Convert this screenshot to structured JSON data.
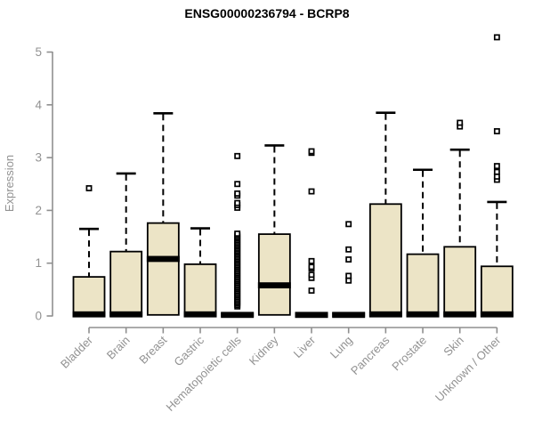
{
  "chart_data": {
    "type": "boxplot",
    "title": "ENSG00000236794 - BCRP8",
    "ylabel": "Expression",
    "xlabel": "",
    "ylim": [
      0,
      5
    ],
    "yticks": [
      0,
      1,
      2,
      3,
      4,
      5
    ],
    "grid": false,
    "legend": "none",
    "colors": {
      "box_fill": "#ece4c6",
      "box_border": "#000000",
      "median": "#000000",
      "whisker": "#000000",
      "outlier_fill": "#ffffff",
      "axis": "#8f8f8f",
      "label": "#929292",
      "title": "#000000",
      "background": "#ffffff"
    },
    "categories": [
      "Bladder",
      "Brain",
      "Breast",
      "Gastric",
      "Hematopoietic cells",
      "Kidney",
      "Liver",
      "Lung",
      "Pancreas",
      "Prostate",
      "Skin",
      "Unknown / Other"
    ],
    "boxes": [
      {
        "label": "Bladder",
        "q1": 0,
        "median": 0.03,
        "q3": 0.74,
        "whisker_low": 0,
        "whisker_high": 1.65,
        "outliers": [
          2.42
        ]
      },
      {
        "label": "Brain",
        "q1": 0,
        "median": 0.03,
        "q3": 1.22,
        "whisker_low": 0,
        "whisker_high": 2.7,
        "outliers": []
      },
      {
        "label": "Breast",
        "q1": 0.02,
        "median": 1.08,
        "q3": 1.76,
        "whisker_low": 0,
        "whisker_high": 3.84,
        "outliers": []
      },
      {
        "label": "Gastric",
        "q1": 0,
        "median": 0.03,
        "q3": 0.98,
        "whisker_low": 0,
        "whisker_high": 1.66,
        "outliers": []
      },
      {
        "label": "Hematopoietic cells",
        "q1": 0,
        "median": 0.02,
        "q3": 0.05,
        "whisker_low": 0,
        "whisker_high": 0.06,
        "outliers": [
          0.18,
          0.21,
          0.24,
          0.27,
          0.3,
          0.33,
          0.36,
          0.39,
          0.42,
          0.45,
          0.48,
          0.51,
          0.54,
          0.57,
          0.6,
          0.63,
          0.66,
          0.69,
          0.72,
          0.75,
          0.78,
          0.81,
          0.84,
          0.87,
          0.9,
          0.93,
          0.96,
          0.99,
          1.02,
          1.05,
          1.08,
          1.11,
          1.14,
          1.17,
          1.2,
          1.23,
          1.26,
          1.29,
          1.32,
          1.35,
          1.38,
          1.41,
          1.44,
          1.47,
          1.5,
          1.53,
          1.56,
          2.05,
          2.1,
          2.14,
          2.28,
          2.32,
          2.5,
          3.03
        ]
      },
      {
        "label": "Kidney",
        "q1": 0.02,
        "median": 0.58,
        "q3": 1.55,
        "whisker_low": 0,
        "whisker_high": 3.23,
        "outliers": []
      },
      {
        "label": "Liver",
        "q1": 0,
        "median": 0.02,
        "q3": 0.05,
        "whisker_low": 0,
        "whisker_high": 0.06,
        "outliers": [
          0.48,
          0.72,
          0.78,
          0.9,
          0.93,
          1.04,
          2.36,
          3.09,
          3.12
        ]
      },
      {
        "label": "Lung",
        "q1": 0,
        "median": 0.02,
        "q3": 0.05,
        "whisker_low": 0,
        "whisker_high": 0.06,
        "outliers": [
          0.67,
          0.76,
          1.07,
          1.26,
          1.74
        ]
      },
      {
        "label": "Pancreas",
        "q1": 0,
        "median": 0.03,
        "q3": 2.12,
        "whisker_low": 0,
        "whisker_high": 3.85,
        "outliers": []
      },
      {
        "label": "Prostate",
        "q1": 0,
        "median": 0.03,
        "q3": 1.17,
        "whisker_low": 0,
        "whisker_high": 2.77,
        "outliers": []
      },
      {
        "label": "Skin",
        "q1": 0,
        "median": 0.03,
        "q3": 1.31,
        "whisker_low": 0,
        "whisker_high": 3.15,
        "outliers": [
          3.59,
          3.66
        ]
      },
      {
        "label": "Unknown / Other",
        "q1": 0,
        "median": 0.03,
        "q3": 0.94,
        "whisker_low": 0,
        "whisker_high": 2.16,
        "outliers": [
          2.58,
          2.64,
          2.73,
          2.84,
          3.5,
          5.28
        ]
      }
    ]
  }
}
